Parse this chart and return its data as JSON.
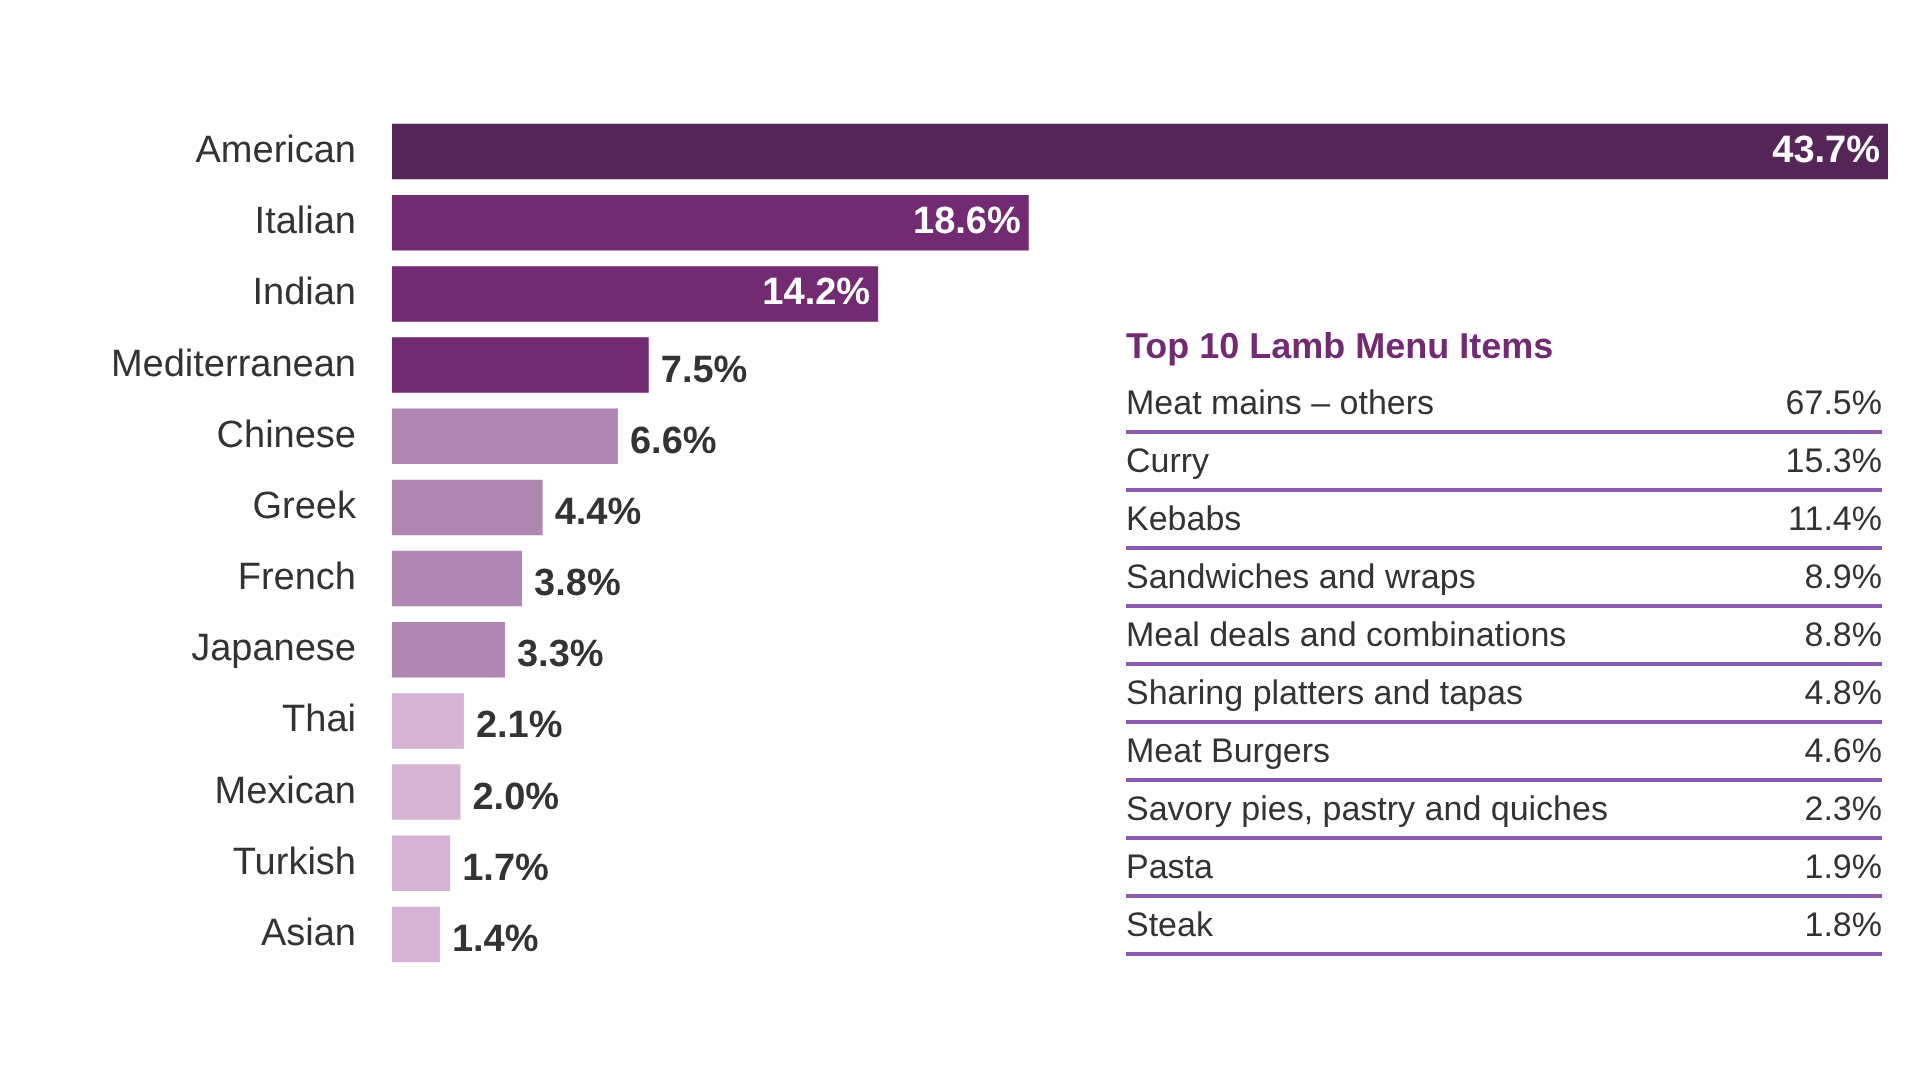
{
  "chart_data": [
    {
      "type": "bar",
      "orientation": "horizontal",
      "data_labels": true,
      "legend": false,
      "categories": [
        "American",
        "Italian",
        "Indian",
        "Mediterranean",
        "Chinese",
        "Greek",
        "French",
        "Japanese",
        "Thai",
        "Mexican",
        "Turkish",
        "Asian"
      ],
      "values": [
        43.7,
        18.6,
        14.2,
        7.5,
        6.6,
        4.4,
        3.8,
        3.3,
        2.1,
        2.0,
        1.7,
        1.4
      ],
      "value_labels": [
        "43.7%",
        "18.6%",
        "14.2%",
        "7.5%",
        "6.6%",
        "4.4%",
        "3.8%",
        "3.3%",
        "2.1%",
        "2.0%",
        "1.7%",
        "1.4%"
      ],
      "colors": [
        "#552558",
        "#722a72",
        "#722a72",
        "#722a72",
        "#b087b3",
        "#b087b3",
        "#b087b3",
        "#b087b3",
        "#d4b3d4",
        "#d4b3d4",
        "#d4b3d4",
        "#d4b3d4"
      ]
    },
    {
      "type": "other",
      "title": "Top 10 Lamb Menu Items",
      "data_labels": true,
      "categories": [
        "Meat mains – others",
        "Curry",
        "Kebabs",
        "Sandwiches and wraps",
        "Meal deals and combinations",
        "Sharing platters and tapas",
        "Meat Burgers",
        "Savory pies, pastry and quiches",
        "Pasta",
        "Steak"
      ],
      "value_labels": [
        "67.5%",
        "15.3%",
        "11.4%",
        "8.9%",
        "8.8%",
        "4.8%",
        "4.6%",
        "2.3%",
        "1.9%",
        "1.8%"
      ]
    }
  ]
}
